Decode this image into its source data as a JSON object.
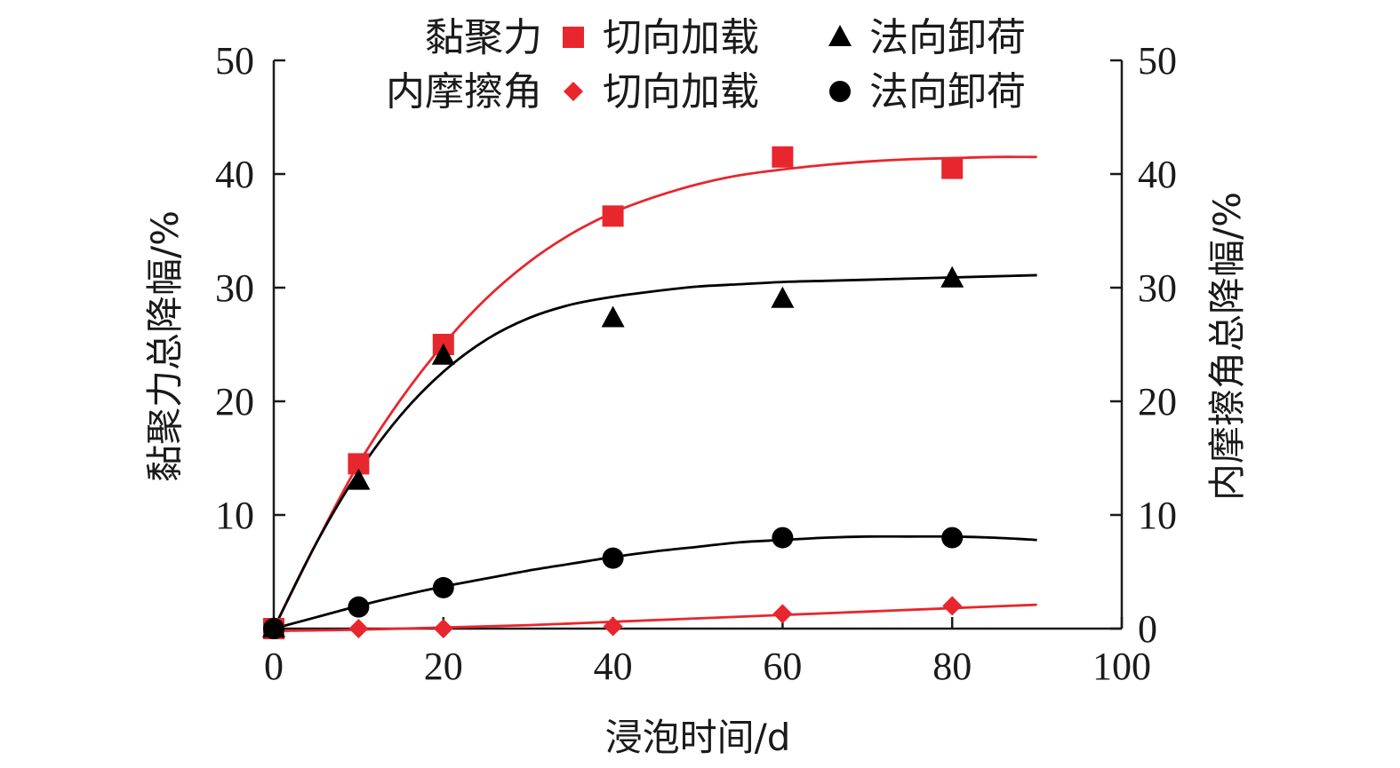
{
  "chart_data": {
    "type": "scatter",
    "xlabel": "浸泡时间/d",
    "ylabel_left": "黏聚力总降幅/%",
    "ylabel_right": "内摩擦角总降幅/%",
    "xlim": [
      0,
      100
    ],
    "ylim": [
      0,
      50
    ],
    "x_ticks": [
      "0",
      "20",
      "40",
      "60",
      "80",
      "100"
    ],
    "y_ticks_left": [
      "10",
      "20",
      "30",
      "40",
      "50"
    ],
    "y_ticks_right": [
      "0",
      "10",
      "20",
      "30",
      "40",
      "50"
    ],
    "grid": false,
    "legend": {
      "placement": "top",
      "group_1": "黏聚力",
      "group_2": "内摩擦角",
      "entries": [
        {
          "group": "黏聚力",
          "label": "切向加载",
          "marker": "square",
          "color": "#e8262d"
        },
        {
          "group": "黏聚力",
          "label": "法向卸荷",
          "marker": "triangle",
          "color": "#000000"
        },
        {
          "group": "内摩擦角",
          "label": "切向加载",
          "marker": "diamond",
          "color": "#e8262d"
        },
        {
          "group": "内摩擦角",
          "label": "法向卸荷",
          "marker": "circle",
          "color": "#000000"
        }
      ]
    },
    "series": [
      {
        "group": "黏聚力",
        "label": "切向加载",
        "marker": "square",
        "color": "#e8262d",
        "x": [
          0,
          10,
          20,
          40,
          60,
          80
        ],
        "y": [
          0,
          14.5,
          25,
          36.3,
          41.5,
          40.5
        ],
        "fit_x": [
          0,
          5,
          10,
          15,
          20,
          25,
          30,
          35,
          40,
          45,
          50,
          55,
          60,
          65,
          70,
          75,
          80,
          85,
          90
        ],
        "fit_y": [
          0,
          7.5,
          14.5,
          20.2,
          25,
          29.0,
          32.2,
          34.7,
          36.6,
          38.0,
          39.1,
          39.9,
          40.4,
          40.8,
          41.1,
          41.3,
          41.4,
          41.5,
          41.5
        ]
      },
      {
        "group": "黏聚力",
        "label": "法向卸荷",
        "marker": "triangle",
        "color": "#000000",
        "x": [
          0,
          10,
          20,
          40,
          60,
          80
        ],
        "y": [
          0,
          13.0,
          24.0,
          27.3,
          29.0,
          30.8
        ],
        "fit_x": [
          0,
          5,
          10,
          15,
          20,
          25,
          30,
          35,
          40,
          45,
          50,
          55,
          60,
          65,
          70,
          75,
          80,
          85,
          90
        ],
        "fit_y": [
          0,
          7.5,
          13.8,
          18.8,
          22.6,
          25.4,
          27.3,
          28.5,
          29.2,
          29.7,
          30.1,
          30.3,
          30.5,
          30.6,
          30.7,
          30.8,
          30.9,
          31.0,
          31.1
        ]
      },
      {
        "group": "内摩擦角",
        "label": "切向加载",
        "marker": "diamond",
        "color": "#e8262d",
        "x": [
          0,
          10,
          20,
          40,
          60,
          80
        ],
        "y": [
          0,
          0,
          0,
          0.2,
          1.3,
          2.0
        ],
        "fit_x": [
          0,
          10,
          20,
          30,
          40,
          50,
          60,
          70,
          80,
          90
        ],
        "fit_y": [
          -0.2,
          -0.1,
          0.1,
          0.3,
          0.6,
          0.9,
          1.2,
          1.5,
          1.8,
          2.1
        ]
      },
      {
        "group": "内摩擦角",
        "label": "法向卸荷",
        "marker": "circle",
        "color": "#000000",
        "x": [
          0,
          10,
          20,
          40,
          60,
          80
        ],
        "y": [
          0,
          1.9,
          3.6,
          6.2,
          8.0,
          8.0
        ],
        "fit_x": [
          0,
          5,
          10,
          15,
          20,
          25,
          30,
          35,
          40,
          45,
          50,
          55,
          60,
          65,
          70,
          75,
          80,
          85,
          90
        ],
        "fit_y": [
          0,
          1.0,
          2.0,
          2.9,
          3.7,
          4.4,
          5.1,
          5.7,
          6.3,
          6.8,
          7.2,
          7.6,
          7.8,
          8.0,
          8.1,
          8.1,
          8.1,
          8.0,
          7.8
        ]
      }
    ]
  }
}
